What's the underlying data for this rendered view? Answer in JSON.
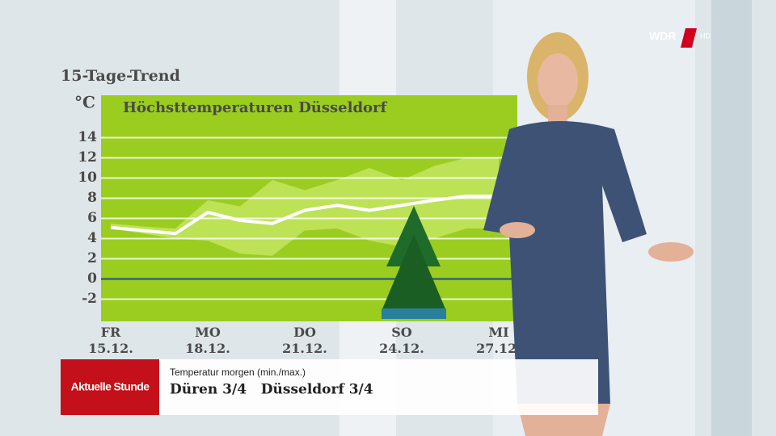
{
  "header": {
    "trend_label": "15-Tage-Trend",
    "logo": "WDR",
    "logo_suffix": "HD"
  },
  "chart_data": {
    "type": "line",
    "title": "Höchsttemperaturen Düsseldorf",
    "y_label": "°C",
    "categories": [
      "FR 15.12.",
      null,
      null,
      "MO 18.12.",
      null,
      null,
      "DO 21.12.",
      null,
      null,
      "SO 24.12.",
      null,
      null,
      "MI 27.12."
    ],
    "values": [
      5.1,
      4.8,
      4.5,
      6.6,
      5.8,
      5.5,
      6.8,
      7.3,
      6.8,
      7.3,
      7.8,
      8.2,
      8.2
    ],
    "range_high": [
      5.5,
      5.2,
      5.0,
      7.8,
      7.2,
      9.8,
      8.8,
      9.8,
      11.0,
      9.8,
      11.2,
      12.0,
      12.0
    ],
    "range_low": [
      5.0,
      4.5,
      4.0,
      3.8,
      2.5,
      2.3,
      4.8,
      5.0,
      3.8,
      3.2,
      4.0,
      5.0,
      5.0
    ],
    "color": "#ffffff",
    "band_color": "#c8e86a",
    "background": "#9acd1f",
    "ylim": [
      -4.2,
      18.2
    ],
    "yticks": [
      -2,
      0,
      2,
      4,
      6,
      8,
      10,
      12,
      14
    ],
    "grid": true
  },
  "ticker": {
    "brand": "Aktuelle Stunde",
    "caption": "Temperatur morgen (min./max.)",
    "text": "Düren 3/4   Düsseldorf 3/4"
  }
}
